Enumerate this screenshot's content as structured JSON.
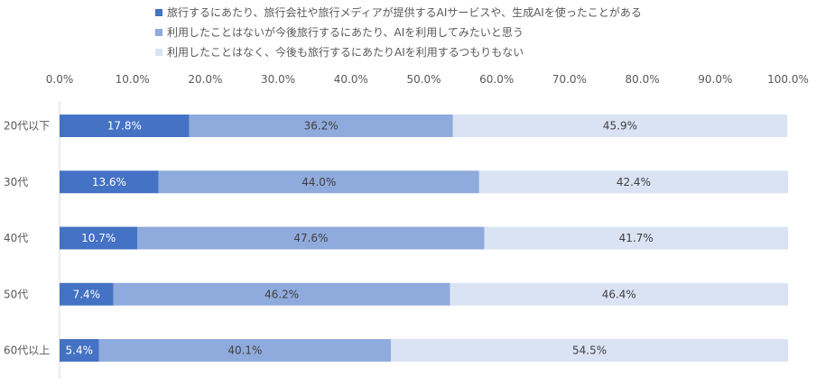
{
  "chart_data": {
    "type": "bar",
    "orientation": "horizontal",
    "stacked": true,
    "percent_stacked": true,
    "categories": [
      "20代以下",
      "30代",
      "40代",
      "50代",
      "60代以上"
    ],
    "series": [
      {
        "name": "旅行するにあたり、旅行会社や旅行メディアが提供するAIサービスや、生成AIを使ったことがある",
        "color": "#4472c4",
        "values": [
          17.8,
          13.6,
          10.7,
          7.4,
          5.4
        ],
        "labels": [
          "17.8%",
          "13.6%",
          "10.7%",
          "7.4%",
          "5.4%"
        ]
      },
      {
        "name": "利用したことはないが今後旅行するにあたり、AIを利用してみたいと思う",
        "color": "#8faadc",
        "values": [
          36.2,
          44.0,
          47.6,
          46.2,
          40.1
        ],
        "labels": [
          "36.2%",
          "44.0%",
          "47.6%",
          "46.2%",
          "40.1%"
        ]
      },
      {
        "name": "利用したことはなく、今後も旅行するにあたりAIを利用するつもりもない",
        "color": "#dae3f3",
        "values": [
          45.9,
          42.4,
          41.7,
          46.4,
          54.5
        ],
        "labels": [
          "45.9%",
          "42.4%",
          "41.7%",
          "46.4%",
          "54.5%"
        ]
      }
    ],
    "xlim": [
      0,
      100
    ],
    "xticks": [
      "0.0%",
      "10.0%",
      "20.0%",
      "30.0%",
      "40.0%",
      "50.0%",
      "60.0%",
      "70.0%",
      "80.0%",
      "90.0%",
      "100.0%"
    ],
    "xlabel": "",
    "ylabel": "",
    "title": "",
    "legend_position": "top",
    "grid": false
  }
}
